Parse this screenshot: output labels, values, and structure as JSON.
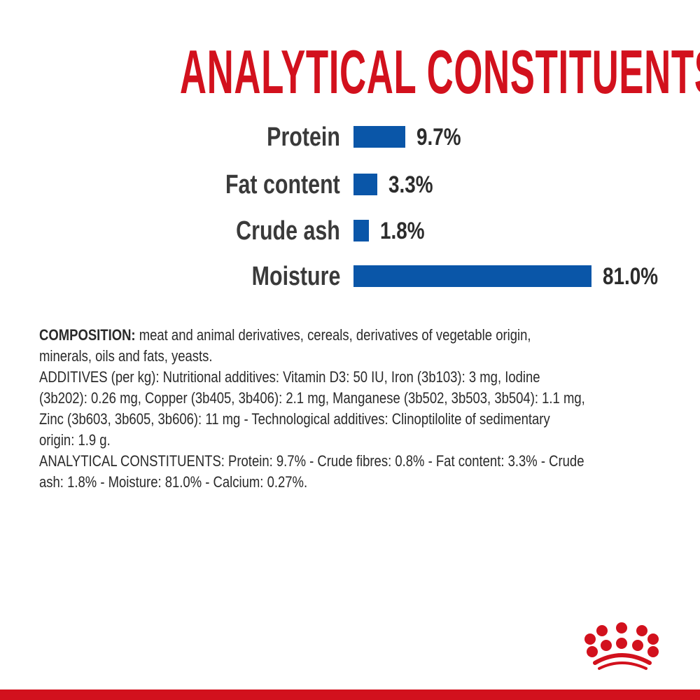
{
  "colors": {
    "brand_red": "#d2111d",
    "bar_blue": "#0a56a8"
  },
  "chart_data": {
    "type": "bar",
    "orientation": "horizontal",
    "title": "ANALYTICAL CONSTITUENTS",
    "categories": [
      "Protein",
      "Fat content",
      "Crude ash",
      "Moisture"
    ],
    "values": [
      9.7,
      3.3,
      1.8,
      81.0
    ],
    "labels": [
      "9.7%",
      "3.3%",
      "1.8%",
      "81.0%"
    ],
    "unit": "%"
  },
  "composition": {
    "lines": [
      {
        "bold": "COMPOSITION:",
        "text": " meat and animal derivatives, cereals, derivatives of vegetable origin,"
      },
      {
        "bold": "",
        "text": "minerals, oils and fats, yeasts."
      },
      {
        "bold": "",
        "text": "ADDITIVES (per kg): Nutritional additives: Vitamin D3: 50 IU, Iron (3b103): 3 mg, Iodine"
      },
      {
        "bold": "",
        "text": "(3b202): 0.26 mg, Copper (3b405, 3b406): 2.1 mg, Manganese (3b502, 3b503, 3b504): 1.1 mg,"
      },
      {
        "bold": "",
        "text": "Zinc (3b603, 3b605, 3b606): 11 mg - Technological additives: Clinoptilolite of sedimentary"
      },
      {
        "bold": "",
        "text": "origin: 1.9 g."
      },
      {
        "bold": "",
        "text": "ANALYTICAL CONSTITUENTS: Protein: 9.7% - Crude fibres: 0.8% - Fat content: 3.3% - Crude"
      },
      {
        "bold": "",
        "text": "ash: 1.8% - Moisture: 81.0% - Calcium: 0.27%."
      }
    ]
  },
  "logo": {
    "name": "crown-logo"
  }
}
